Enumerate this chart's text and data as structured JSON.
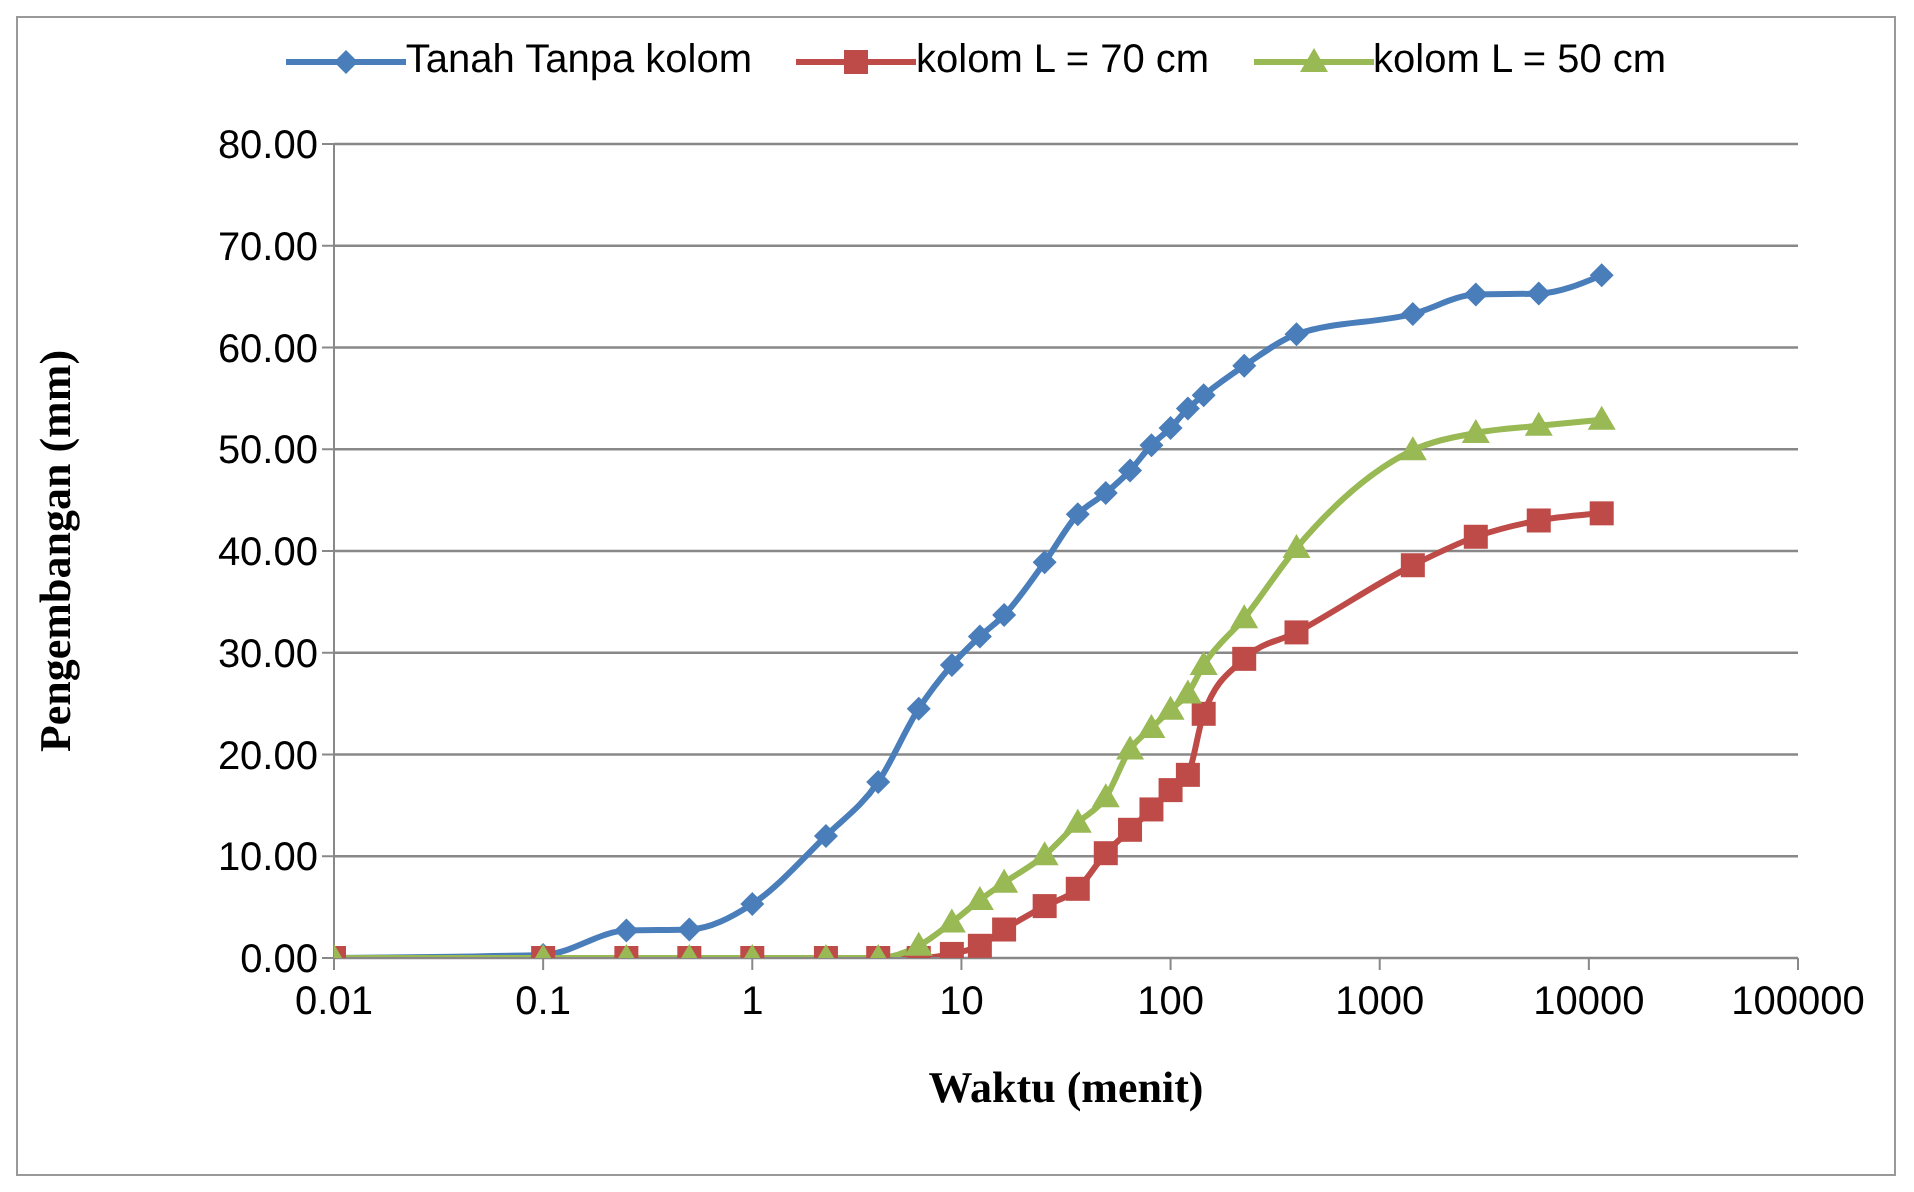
{
  "chart_data": {
    "type": "line",
    "xlabel": "Waktu (menit)",
    "ylabel": "Pengembangan (mm)",
    "log": "x",
    "x": [
      0.01,
      0.1,
      0.25,
      0.5,
      1,
      2.25,
      4,
      6.25,
      9,
      12.25,
      16,
      25,
      36,
      49,
      64,
      81,
      100,
      121,
      144,
      225,
      400,
      1440,
      2880,
      5760,
      11520
    ],
    "series": [
      {
        "name": "Tanah Tanpa kolom",
        "color": "#4a7ebb",
        "marker": "diamond",
        "values": [
          0,
          0.3,
          2.7,
          2.8,
          5.3,
          12,
          17.3,
          24.5,
          28.8,
          31.6,
          33.7,
          38.9,
          43.6,
          45.7,
          47.9,
          50.4,
          52.1,
          54,
          55.3,
          58.2,
          61.3,
          63.3,
          65.2,
          65.3,
          67.1
        ]
      },
      {
        "name": "kolom L = 70 cm",
        "color": "#be4b48",
        "marker": "square",
        "values": [
          0,
          0,
          0,
          0,
          0,
          0,
          0,
          0,
          0.4,
          1.2,
          2.8,
          5.1,
          6.8,
          10.3,
          12.6,
          14.6,
          16.5,
          18,
          24,
          29.4,
          32,
          38.6,
          41.4,
          43,
          43.7
        ]
      },
      {
        "name": "kolom L = 50 cm",
        "color": "#98b954",
        "marker": "triangle",
        "values": [
          0,
          0,
          0,
          0,
          0,
          0,
          0,
          1.2,
          3.5,
          5.7,
          7.4,
          10.1,
          13.3,
          15.8,
          20.5,
          22.6,
          24.4,
          26,
          28.8,
          33.4,
          40.3,
          49.9,
          51.6,
          52.3,
          52.9
        ]
      }
    ],
    "xlim": [
      0.01,
      100000
    ],
    "xticks": [
      0.01,
      0.1,
      1,
      10,
      100,
      1000,
      10000,
      100000
    ],
    "ylim": [
      0,
      80
    ],
    "yticks": [
      {
        "value": 0,
        "label": "0.00"
      },
      {
        "value": 10,
        "label": "10.00"
      },
      {
        "value": 20,
        "label": "20.00"
      },
      {
        "value": 30,
        "label": "30.00"
      },
      {
        "value": 40,
        "label": "40.00"
      },
      {
        "value": 50,
        "label": "50.00"
      },
      {
        "value": 60,
        "label": "60.00"
      },
      {
        "value": 70,
        "label": "70.00"
      },
      {
        "value": 80,
        "label": "80.00"
      }
    ],
    "grid": "y",
    "legend": "top"
  }
}
